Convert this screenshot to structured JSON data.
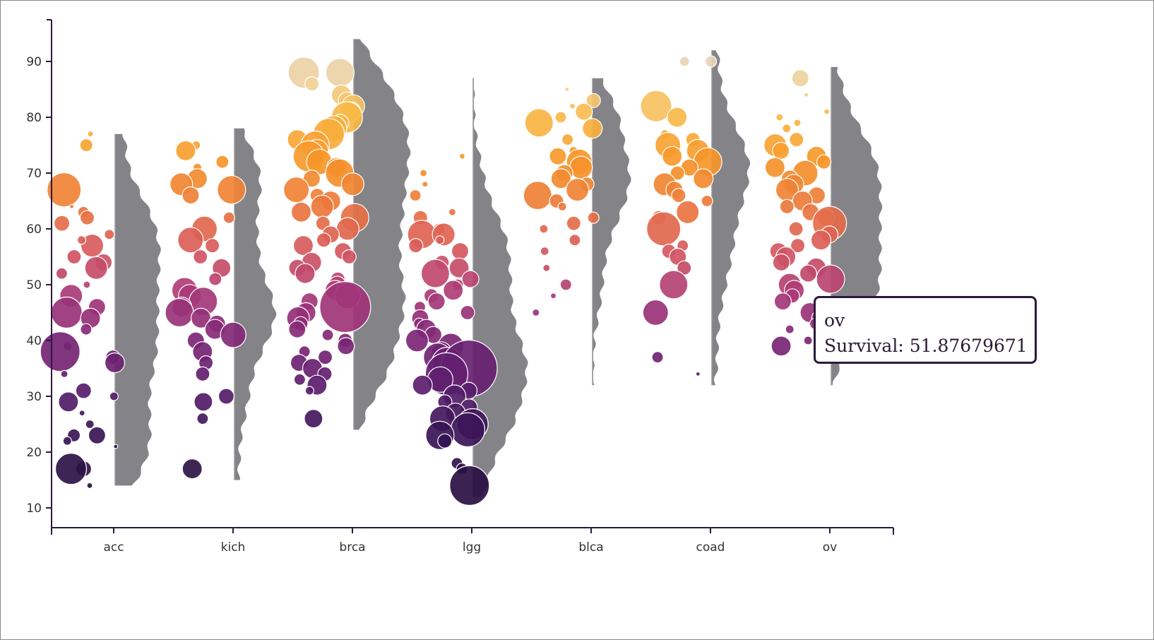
{
  "chart_data": {
    "type": "scatter",
    "title": "",
    "xlabel": "",
    "ylabel": "",
    "categories": [
      "acc",
      "kich",
      "brca",
      "lgg",
      "blca",
      "coad",
      "ov"
    ],
    "y_ticks": [
      10,
      20,
      30,
      40,
      50,
      60,
      70,
      80,
      90
    ],
    "ylim": [
      6.5,
      98
    ],
    "color_scale": "inferno, by y value (low = dark purple, high = light orange)",
    "colors": {
      "low": "#2b1446",
      "mid": "#a63a79",
      "high": "#f9b23c",
      "top": "#e8d3c0",
      "violin": "#6f6f73",
      "axis": "#2b1a3d"
    },
    "series": [
      {
        "category": "acc",
        "y_min": 14,
        "y_max": 77,
        "points": [
          {
            "y": 75,
            "r": 9
          },
          {
            "y": 77,
            "r": 4
          },
          {
            "y": 67,
            "r": 24
          },
          {
            "y": 64,
            "r": 3
          },
          {
            "y": 63,
            "r": 8
          },
          {
            "y": 62,
            "r": 10
          },
          {
            "y": 61,
            "r": 11
          },
          {
            "y": 59,
            "r": 7
          },
          {
            "y": 57,
            "r": 16
          },
          {
            "y": 58,
            "r": 6
          },
          {
            "y": 55,
            "r": 10
          },
          {
            "y": 54,
            "r": 12
          },
          {
            "y": 53,
            "r": 16
          },
          {
            "y": 52,
            "r": 8
          },
          {
            "y": 50,
            "r": 5
          },
          {
            "y": 48,
            "r": 16
          },
          {
            "y": 46,
            "r": 12
          },
          {
            "y": 45,
            "r": 22
          },
          {
            "y": 44,
            "r": 14
          },
          {
            "y": 42,
            "r": 8
          },
          {
            "y": 39,
            "r": 6
          },
          {
            "y": 38,
            "r": 28
          },
          {
            "y": 37,
            "r": 10
          },
          {
            "y": 36,
            "r": 14
          },
          {
            "y": 34,
            "r": 5
          },
          {
            "y": 31,
            "r": 11
          },
          {
            "y": 30,
            "r": 6
          },
          {
            "y": 29,
            "r": 14
          },
          {
            "y": 27,
            "r": 4
          },
          {
            "y": 25,
            "r": 6
          },
          {
            "y": 23,
            "r": 12
          },
          {
            "y": 23,
            "r": 9
          },
          {
            "y": 22,
            "r": 6
          },
          {
            "y": 21,
            "r": 3
          },
          {
            "y": 17,
            "r": 11
          },
          {
            "y": 17,
            "r": 22
          },
          {
            "y": 14,
            "r": 4
          }
        ]
      },
      {
        "category": "kich",
        "y_min": 15,
        "y_max": 78,
        "points": [
          {
            "y": 75,
            "r": 6
          },
          {
            "y": 74,
            "r": 14
          },
          {
            "y": 72,
            "r": 9
          },
          {
            "y": 71,
            "r": 6
          },
          {
            "y": 69,
            "r": 14
          },
          {
            "y": 68,
            "r": 16
          },
          {
            "y": 67,
            "r": 20
          },
          {
            "y": 66,
            "r": 12
          },
          {
            "y": 62,
            "r": 8
          },
          {
            "y": 60,
            "r": 18
          },
          {
            "y": 58,
            "r": 18
          },
          {
            "y": 57,
            "r": 10
          },
          {
            "y": 55,
            "r": 10
          },
          {
            "y": 53,
            "r": 13
          },
          {
            "y": 51,
            "r": 9
          },
          {
            "y": 49,
            "r": 18
          },
          {
            "y": 48,
            "r": 16
          },
          {
            "y": 47,
            "r": 20
          },
          {
            "y": 46,
            "r": 14
          },
          {
            "y": 45,
            "r": 20
          },
          {
            "y": 44,
            "r": 14
          },
          {
            "y": 43,
            "r": 12
          },
          {
            "y": 42,
            "r": 14
          },
          {
            "y": 41,
            "r": 18
          },
          {
            "y": 40,
            "r": 12
          },
          {
            "y": 38,
            "r": 14
          },
          {
            "y": 36,
            "r": 10
          },
          {
            "y": 34,
            "r": 10
          },
          {
            "y": 30,
            "r": 11
          },
          {
            "y": 29,
            "r": 13
          },
          {
            "y": 26,
            "r": 8
          },
          {
            "y": 17,
            "r": 14
          }
        ]
      },
      {
        "category": "brca",
        "y_min": 24,
        "y_max": 94,
        "points": [
          {
            "y": 90,
            "r": 4
          },
          {
            "y": 88,
            "r": 20
          },
          {
            "y": 88,
            "r": 22
          },
          {
            "y": 86,
            "r": 10
          },
          {
            "y": 84,
            "r": 14
          },
          {
            "y": 83,
            "r": 12
          },
          {
            "y": 82,
            "r": 16
          },
          {
            "y": 81,
            "r": 14
          },
          {
            "y": 80,
            "r": 22
          },
          {
            "y": 79,
            "r": 12
          },
          {
            "y": 78,
            "r": 18
          },
          {
            "y": 77,
            "r": 22
          },
          {
            "y": 76,
            "r": 14
          },
          {
            "y": 75,
            "r": 20
          },
          {
            "y": 74,
            "r": 16
          },
          {
            "y": 73,
            "r": 22
          },
          {
            "y": 72,
            "r": 18
          },
          {
            "y": 71,
            "r": 14
          },
          {
            "y": 70,
            "r": 20
          },
          {
            "y": 69,
            "r": 12
          },
          {
            "y": 68,
            "r": 16
          },
          {
            "y": 67,
            "r": 18
          },
          {
            "y": 66,
            "r": 10
          },
          {
            "y": 65,
            "r": 14
          },
          {
            "y": 64,
            "r": 16
          },
          {
            "y": 63,
            "r": 14
          },
          {
            "y": 62,
            "r": 20
          },
          {
            "y": 61,
            "r": 10
          },
          {
            "y": 60,
            "r": 16
          },
          {
            "y": 59,
            "r": 12
          },
          {
            "y": 58,
            "r": 10
          },
          {
            "y": 57,
            "r": 14
          },
          {
            "y": 56,
            "r": 12
          },
          {
            "y": 55,
            "r": 10
          },
          {
            "y": 54,
            "r": 14
          },
          {
            "y": 53,
            "r": 12
          },
          {
            "y": 52,
            "r": 14
          },
          {
            "y": 51,
            "r": 10
          },
          {
            "y": 50,
            "r": 12
          },
          {
            "y": 49,
            "r": 14
          },
          {
            "y": 48,
            "r": 18
          },
          {
            "y": 47,
            "r": 12
          },
          {
            "y": 46,
            "r": 36
          },
          {
            "y": 45,
            "r": 14
          },
          {
            "y": 44,
            "r": 16
          },
          {
            "y": 43,
            "r": 10
          },
          {
            "y": 42,
            "r": 12
          },
          {
            "y": 41,
            "r": 8
          },
          {
            "y": 40,
            "r": 10
          },
          {
            "y": 39,
            "r": 12
          },
          {
            "y": 38,
            "r": 8
          },
          {
            "y": 37,
            "r": 10
          },
          {
            "y": 36,
            "r": 12
          },
          {
            "y": 35,
            "r": 14
          },
          {
            "y": 34,
            "r": 10
          },
          {
            "y": 33,
            "r": 8
          },
          {
            "y": 32,
            "r": 14
          },
          {
            "y": 31,
            "r": 6
          },
          {
            "y": 26,
            "r": 13
          }
        ]
      },
      {
        "category": "lgg",
        "y_min": 12,
        "y_max": 87,
        "points": [
          {
            "y": 73,
            "r": 4
          },
          {
            "y": 70,
            "r": 5
          },
          {
            "y": 68,
            "r": 4
          },
          {
            "y": 66,
            "r": 8
          },
          {
            "y": 63,
            "r": 5
          },
          {
            "y": 62,
            "r": 10
          },
          {
            "y": 60,
            "r": 8
          },
          {
            "y": 59,
            "r": 20
          },
          {
            "y": 59,
            "r": 16
          },
          {
            "y": 58,
            "r": 6
          },
          {
            "y": 57,
            "r": 10
          },
          {
            "y": 56,
            "r": 12
          },
          {
            "y": 54,
            "r": 10
          },
          {
            "y": 53,
            "r": 14
          },
          {
            "y": 52,
            "r": 20
          },
          {
            "y": 51,
            "r": 12
          },
          {
            "y": 50,
            "r": 8
          },
          {
            "y": 49,
            "r": 14
          },
          {
            "y": 48,
            "r": 10
          },
          {
            "y": 47,
            "r": 12
          },
          {
            "y": 46,
            "r": 8
          },
          {
            "y": 45,
            "r": 10
          },
          {
            "y": 44,
            "r": 12
          },
          {
            "y": 43,
            "r": 8
          },
          {
            "y": 42,
            "r": 14
          },
          {
            "y": 41,
            "r": 12
          },
          {
            "y": 40,
            "r": 16
          },
          {
            "y": 39,
            "r": 18
          },
          {
            "y": 38,
            "r": 14
          },
          {
            "y": 37,
            "r": 20
          },
          {
            "y": 36,
            "r": 22
          },
          {
            "y": 35,
            "r": 40
          },
          {
            "y": 34,
            "r": 30
          },
          {
            "y": 33,
            "r": 18
          },
          {
            "y": 32,
            "r": 14
          },
          {
            "y": 31,
            "r": 12
          },
          {
            "y": 30,
            "r": 16
          },
          {
            "y": 29,
            "r": 10
          },
          {
            "y": 28,
            "r": 12
          },
          {
            "y": 27,
            "r": 14
          },
          {
            "y": 26,
            "r": 18
          },
          {
            "y": 25,
            "r": 22
          },
          {
            "y": 24,
            "r": 24
          },
          {
            "y": 23,
            "r": 20
          },
          {
            "y": 22,
            "r": 10
          },
          {
            "y": 18,
            "r": 8
          },
          {
            "y": 17,
            "r": 8
          },
          {
            "y": 14,
            "r": 28
          }
        ]
      },
      {
        "category": "blca",
        "y_min": 32,
        "y_max": 87,
        "points": [
          {
            "y": 85,
            "r": 3
          },
          {
            "y": 83,
            "r": 10
          },
          {
            "y": 82,
            "r": 4
          },
          {
            "y": 81,
            "r": 12
          },
          {
            "y": 80,
            "r": 8
          },
          {
            "y": 79,
            "r": 20
          },
          {
            "y": 78,
            "r": 14
          },
          {
            "y": 76,
            "r": 8
          },
          {
            "y": 74,
            "r": 6
          },
          {
            "y": 73,
            "r": 12
          },
          {
            "y": 72,
            "r": 18
          },
          {
            "y": 71,
            "r": 16
          },
          {
            "y": 70,
            "r": 12
          },
          {
            "y": 69,
            "r": 14
          },
          {
            "y": 68,
            "r": 10
          },
          {
            "y": 67,
            "r": 16
          },
          {
            "y": 66,
            "r": 20
          },
          {
            "y": 65,
            "r": 10
          },
          {
            "y": 64,
            "r": 6
          },
          {
            "y": 62,
            "r": 8
          },
          {
            "y": 61,
            "r": 10
          },
          {
            "y": 60,
            "r": 6
          },
          {
            "y": 58,
            "r": 8
          },
          {
            "y": 56,
            "r": 6
          },
          {
            "y": 53,
            "r": 5
          },
          {
            "y": 50,
            "r": 8
          },
          {
            "y": 48,
            "r": 4
          },
          {
            "y": 45,
            "r": 5
          }
        ]
      },
      {
        "category": "coad",
        "y_min": 32,
        "y_max": 92,
        "points": [
          {
            "y": 90,
            "r": 8
          },
          {
            "y": 90,
            "r": 7
          },
          {
            "y": 82,
            "r": 22
          },
          {
            "y": 80,
            "r": 14
          },
          {
            "y": 77,
            "r": 6
          },
          {
            "y": 76,
            "r": 10
          },
          {
            "y": 75,
            "r": 18
          },
          {
            "y": 74,
            "r": 16
          },
          {
            "y": 73,
            "r": 14
          },
          {
            "y": 72,
            "r": 20
          },
          {
            "y": 71,
            "r": 12
          },
          {
            "y": 70,
            "r": 10
          },
          {
            "y": 69,
            "r": 14
          },
          {
            "y": 68,
            "r": 16
          },
          {
            "y": 67,
            "r": 12
          },
          {
            "y": 66,
            "r": 10
          },
          {
            "y": 65,
            "r": 8
          },
          {
            "y": 63,
            "r": 16
          },
          {
            "y": 62,
            "r": 10
          },
          {
            "y": 60,
            "r": 24
          },
          {
            "y": 57,
            "r": 8
          },
          {
            "y": 56,
            "r": 10
          },
          {
            "y": 55,
            "r": 12
          },
          {
            "y": 53,
            "r": 10
          },
          {
            "y": 50,
            "r": 20
          },
          {
            "y": 45,
            "r": 18
          },
          {
            "y": 37,
            "r": 8
          },
          {
            "y": 34,
            "r": 3
          }
        ]
      },
      {
        "category": "ov",
        "y_min": 32,
        "y_max": 89,
        "points": [
          {
            "y": 87,
            "r": 12
          },
          {
            "y": 84,
            "r": 3
          },
          {
            "y": 81,
            "r": 4
          },
          {
            "y": 80,
            "r": 5
          },
          {
            "y": 79,
            "r": 5
          },
          {
            "y": 78,
            "r": 6
          },
          {
            "y": 76,
            "r": 10
          },
          {
            "y": 75,
            "r": 16
          },
          {
            "y": 74,
            "r": 12
          },
          {
            "y": 73,
            "r": 14
          },
          {
            "y": 72,
            "r": 10
          },
          {
            "y": 71,
            "r": 14
          },
          {
            "y": 70,
            "r": 18
          },
          {
            "y": 69,
            "r": 12
          },
          {
            "y": 68,
            "r": 14
          },
          {
            "y": 67,
            "r": 16
          },
          {
            "y": 66,
            "r": 12
          },
          {
            "y": 65,
            "r": 14
          },
          {
            "y": 64,
            "r": 10
          },
          {
            "y": 63,
            "r": 12
          },
          {
            "y": 62,
            "r": 12
          },
          {
            "y": 61,
            "r": 24
          },
          {
            "y": 60,
            "r": 10
          },
          {
            "y": 59,
            "r": 12
          },
          {
            "y": 58,
            "r": 14
          },
          {
            "y": 57,
            "r": 10
          },
          {
            "y": 56,
            "r": 12
          },
          {
            "y": 55,
            "r": 14
          },
          {
            "y": 54,
            "r": 12
          },
          {
            "y": 53,
            "r": 14
          },
          {
            "y": 52,
            "r": 12
          },
          {
            "y": 51,
            "r": 20
          },
          {
            "y": 50,
            "r": 16
          },
          {
            "y": 49,
            "r": 14
          },
          {
            "y": 48,
            "r": 10
          },
          {
            "y": 47,
            "r": 12
          },
          {
            "y": 46,
            "r": 10
          },
          {
            "y": 45,
            "r": 14
          },
          {
            "y": 44,
            "r": 12
          },
          {
            "y": 43,
            "r": 8
          },
          {
            "y": 42,
            "r": 6
          },
          {
            "y": 40,
            "r": 6
          },
          {
            "y": 39,
            "r": 14
          }
        ]
      }
    ]
  },
  "tooltip": {
    "line1": "ov",
    "line2": "Survival: 51.87679671"
  }
}
